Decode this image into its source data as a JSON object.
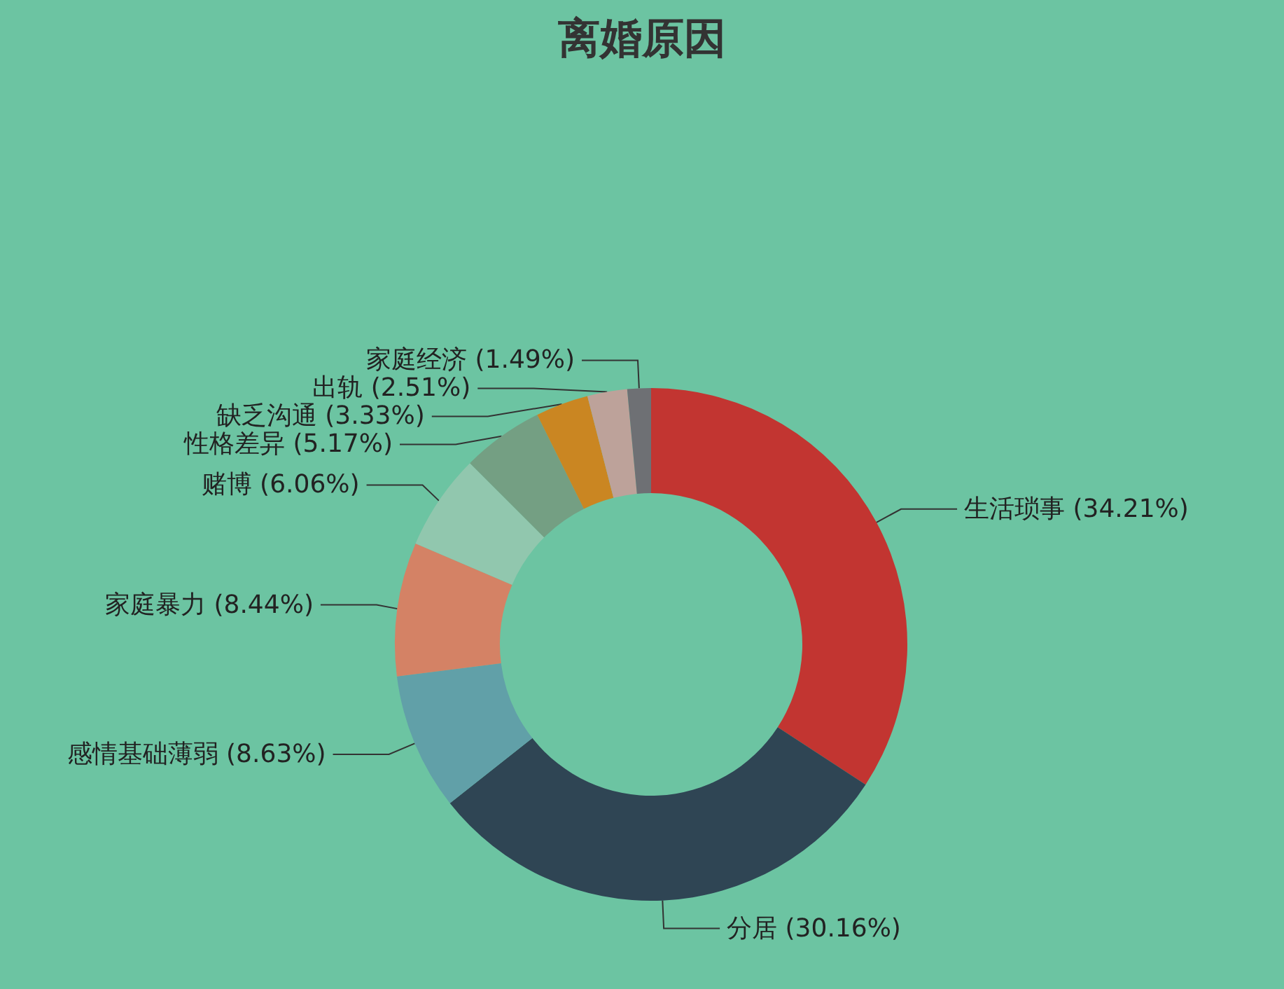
{
  "chart_data": {
    "type": "donut",
    "title": "离婚原因",
    "categories": [
      "生活琐事",
      "分居",
      "感情基础薄弱",
      "家庭暴力",
      "赌博",
      "性格差异",
      "缺乏沟通",
      "出轨",
      "家庭经济"
    ],
    "values": [
      34.21,
      30.16,
      8.63,
      8.44,
      6.06,
      5.17,
      3.33,
      2.51,
      1.49
    ],
    "colors": [
      "#c23531",
      "#2f4554",
      "#61a0a8",
      "#d48265",
      "#91c7ae",
      "#749f83",
      "#ca8622",
      "#bda29a",
      "#6e7074"
    ],
    "value_labels": [
      "(34.21%)",
      "(30.16%)",
      "(8.63%)",
      "(8.44%)",
      "(6.06%)",
      "(5.17%)",
      "(3.33%)",
      "(2.51%)",
      "(1.49%)"
    ],
    "legend": false
  }
}
